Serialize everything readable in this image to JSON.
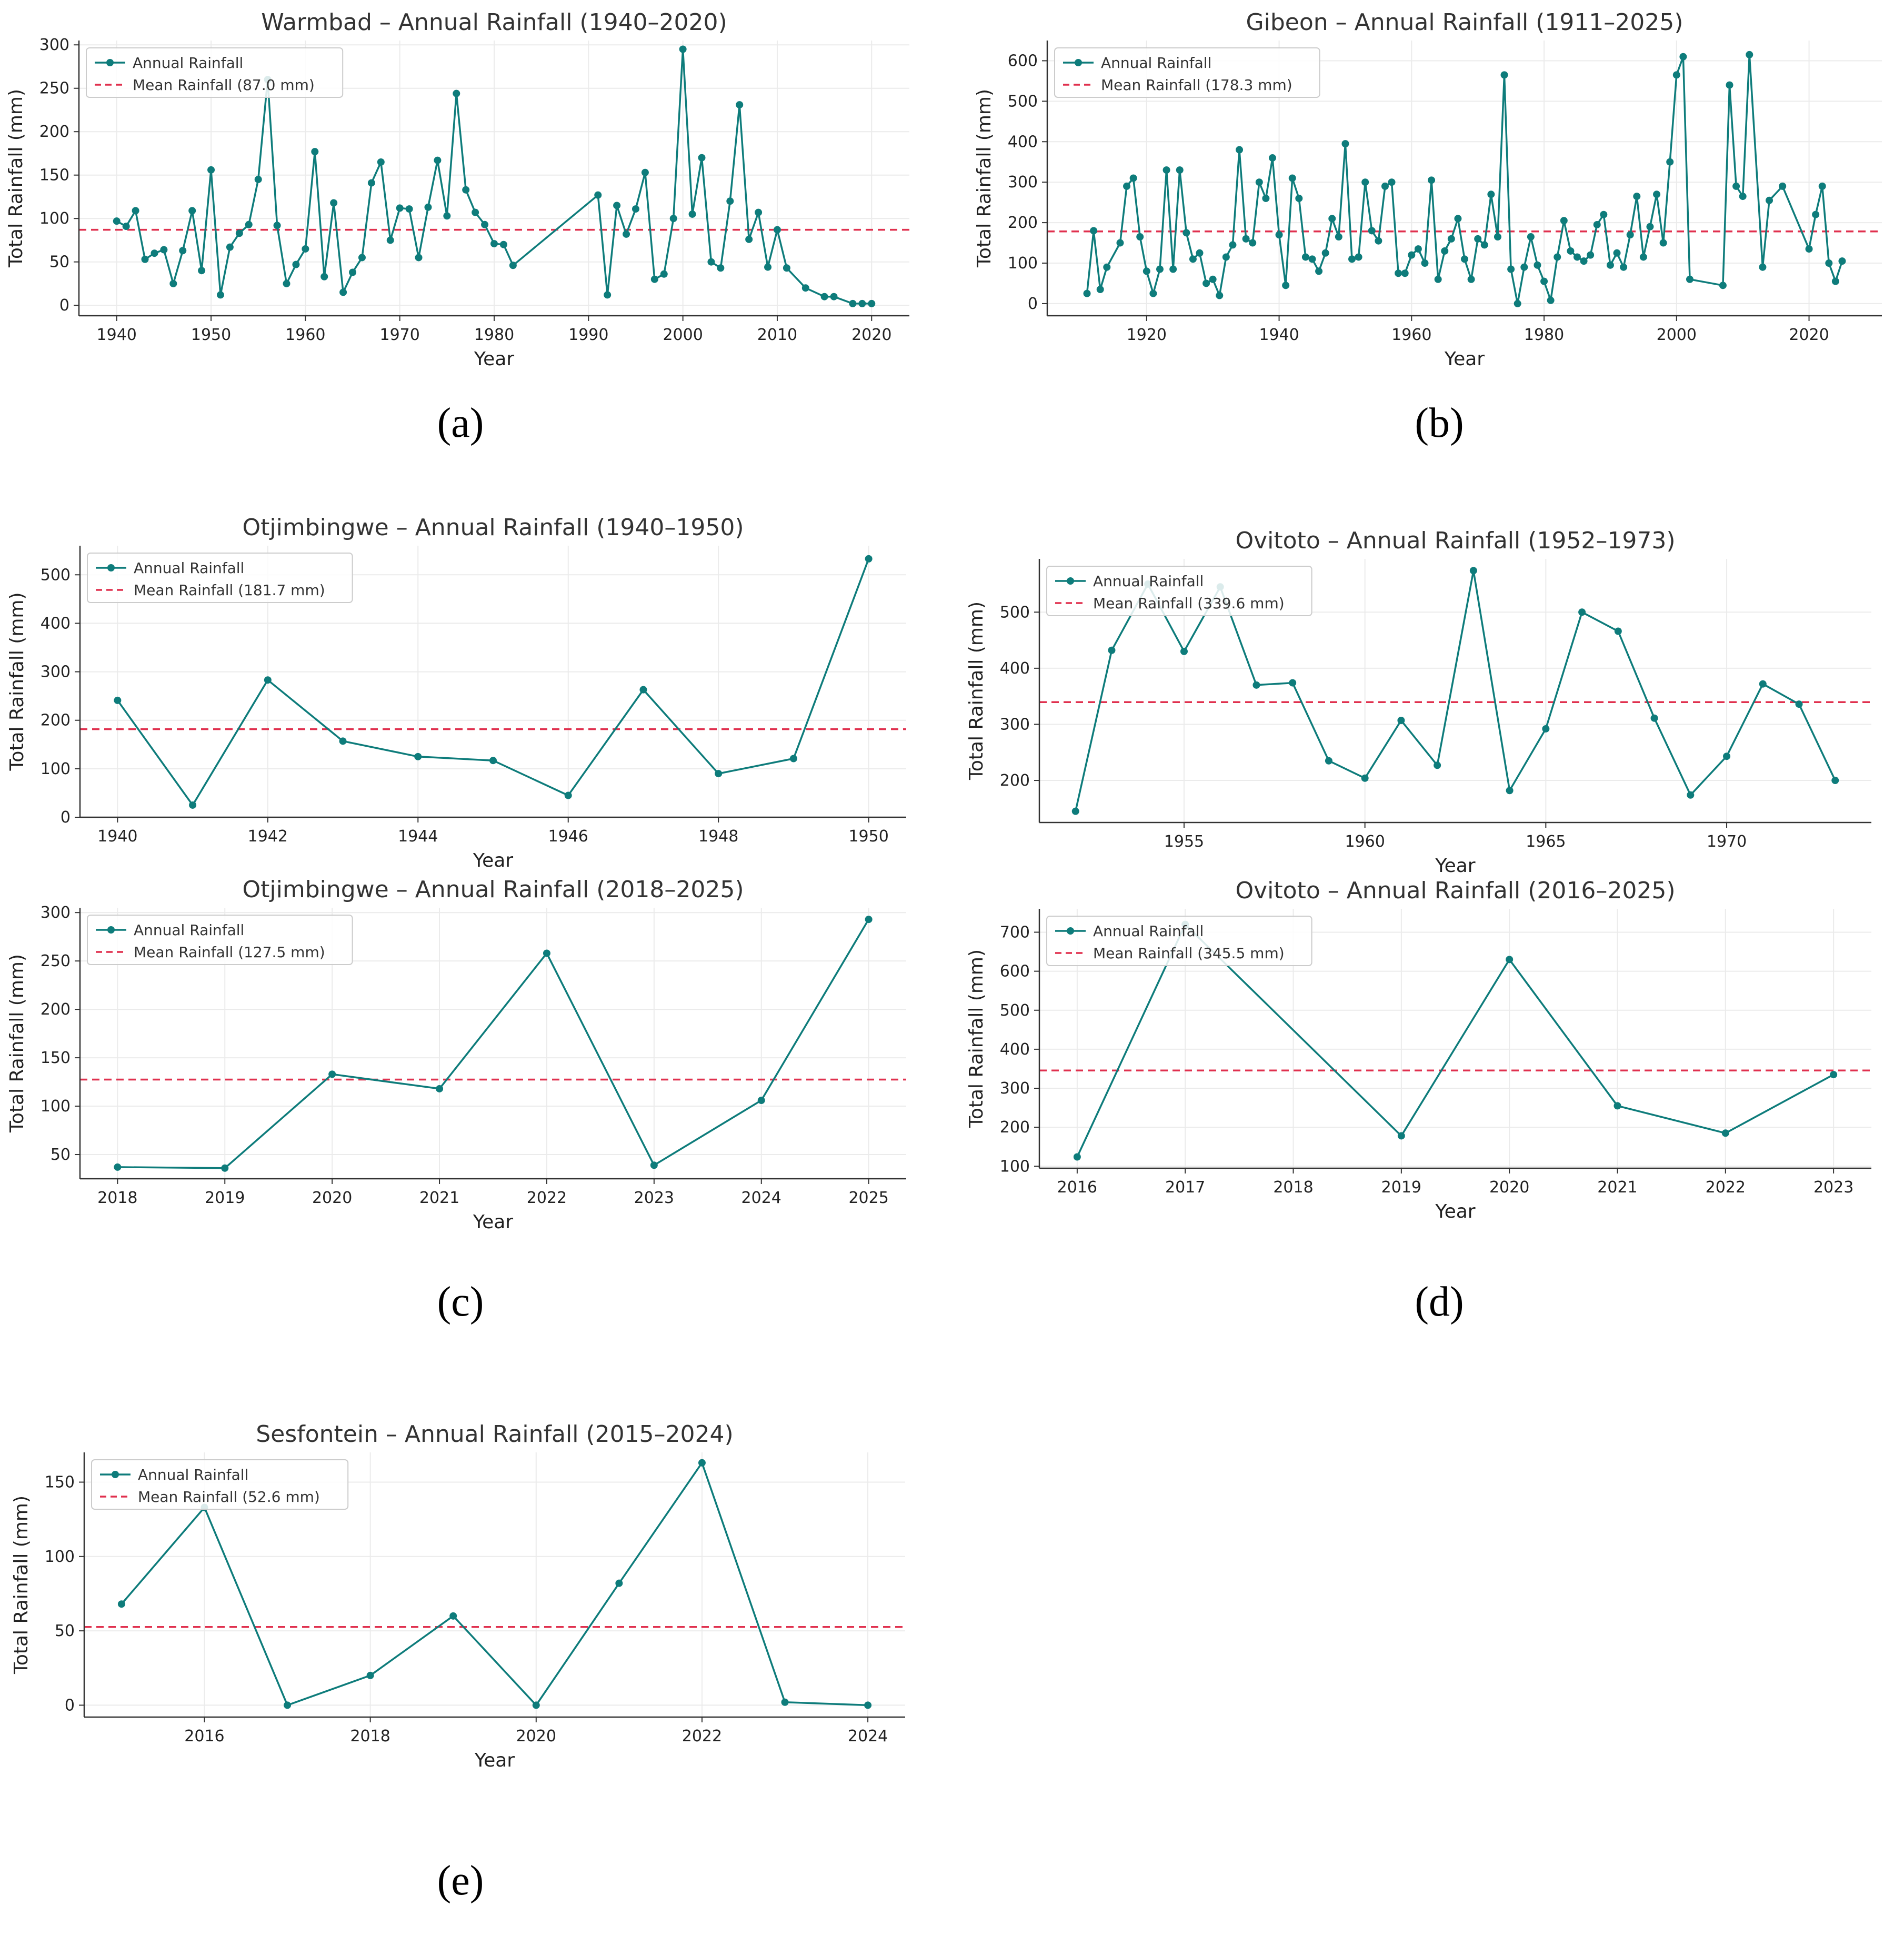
{
  "colors": {
    "series": "#0e7c7b",
    "mean": "#e0304e",
    "axis": "#333333",
    "grid": "#ebebeb",
    "legend_border": "#cccccc"
  },
  "chart_data": [
    {
      "id": "warmbad",
      "type": "line",
      "title": "Warmbad – Annual Rainfall (1940–2020)",
      "xlabel": "Year",
      "ylabel": "Total Rainfall (mm)",
      "xlim": [
        1936,
        2024
      ],
      "ylim": [
        -12,
        305
      ],
      "xticks": [
        1940,
        1950,
        1960,
        1970,
        1980,
        1990,
        2000,
        2010,
        2020
      ],
      "xtick_labels": [
        "1940",
        "1950",
        "1960",
        "1970",
        "1980",
        "1990",
        "2000",
        "2010",
        "2020"
      ],
      "yticks": [
        0,
        50,
        100,
        150,
        200,
        250,
        300
      ],
      "ytick_labels": [
        "0",
        "50",
        "100",
        "150",
        "200",
        "250",
        "300"
      ],
      "legend": {
        "series": "Annual Rainfall",
        "mean": "Mean Rainfall (87.0 mm)",
        "placement": "upper-left"
      },
      "mean": 87.0,
      "panel_label": "(a)",
      "x": [
        1940,
        1941,
        1942,
        1943,
        1944,
        1945,
        1946,
        1947,
        1948,
        1949,
        1950,
        1951,
        1952,
        1953,
        1954,
        1955,
        1956,
        1957,
        1958,
        1959,
        1960,
        1961,
        1962,
        1963,
        1964,
        1965,
        1966,
        1967,
        1968,
        1969,
        1970,
        1971,
        1972,
        1973,
        1974,
        1975,
        1976,
        1977,
        1978,
        1979,
        1980,
        1981,
        1982,
        1991,
        1992,
        1993,
        1994,
        1995,
        1996,
        1997,
        1998,
        1999,
        2000,
        2001,
        2002,
        2003,
        2004,
        2005,
        2006,
        2007,
        2008,
        2009,
        2010,
        2011,
        2013,
        2015,
        2016,
        2018,
        2019,
        2020
      ],
      "values": [
        97,
        91,
        109,
        53,
        60,
        64,
        25,
        63,
        109,
        40,
        156,
        12,
        67,
        83,
        93,
        145,
        260,
        92,
        25,
        47,
        65,
        177,
        33,
        118,
        15,
        38,
        55,
        141,
        165,
        75,
        112,
        111,
        55,
        113,
        167,
        103,
        244,
        133,
        107,
        93,
        71,
        70,
        46,
        127,
        12,
        115,
        82,
        111,
        153,
        30,
        36,
        100,
        295,
        105,
        170,
        50,
        43,
        120,
        231,
        76,
        107,
        44,
        87,
        43,
        20,
        10,
        10,
        2,
        2,
        2
      ]
    },
    {
      "id": "gibeon",
      "type": "line",
      "title": "Gibeon – Annual Rainfall (1911–2025)",
      "xlabel": "Year",
      "ylabel": "Total Rainfall (mm)",
      "xlim": [
        1905,
        2031
      ],
      "ylim": [
        -30,
        650
      ],
      "xticks": [
        1920,
        1940,
        1960,
        1980,
        2000,
        2020
      ],
      "xtick_labels": [
        "1920",
        "1940",
        "1960",
        "1980",
        "2000",
        "2020"
      ],
      "yticks": [
        0,
        100,
        200,
        300,
        400,
        500,
        600
      ],
      "ytick_labels": [
        "0",
        "100",
        "200",
        "300",
        "400",
        "500",
        "600"
      ],
      "legend": {
        "series": "Annual Rainfall",
        "mean": "Mean Rainfall (178.3 mm)",
        "placement": "upper-left"
      },
      "mean": 178.3,
      "panel_label": "(b)",
      "x": [
        1911,
        1912,
        1913,
        1914,
        1916,
        1917,
        1918,
        1919,
        1920,
        1921,
        1922,
        1923,
        1924,
        1925,
        1926,
        1927,
        1928,
        1929,
        1930,
        1931,
        1932,
        1933,
        1934,
        1935,
        1936,
        1937,
        1938,
        1939,
        1940,
        1941,
        1942,
        1943,
        1944,
        1945,
        1946,
        1947,
        1948,
        1949,
        1950,
        1951,
        1952,
        1953,
        1954,
        1955,
        1956,
        1957,
        1958,
        1959,
        1960,
        1961,
        1962,
        1963,
        1964,
        1965,
        1966,
        1967,
        1968,
        1969,
        1970,
        1971,
        1972,
        1973,
        1974,
        1975,
        1976,
        1977,
        1978,
        1979,
        1980,
        1981,
        1982,
        1983,
        1984,
        1985,
        1986,
        1987,
        1988,
        1989,
        1990,
        1991,
        1992,
        1993,
        1994,
        1995,
        1996,
        1997,
        1998,
        1999,
        2000,
        2001,
        2002,
        2007,
        2008,
        2009,
        2010,
        2011,
        2013,
        2014,
        2016,
        2020,
        2021,
        2022,
        2023,
        2024,
        2025
      ],
      "values": [
        25,
        180,
        35,
        90,
        150,
        290,
        310,
        165,
        80,
        25,
        85,
        330,
        85,
        330,
        175,
        110,
        125,
        50,
        60,
        20,
        115,
        145,
        380,
        160,
        150,
        300,
        260,
        360,
        170,
        45,
        310,
        260,
        115,
        110,
        80,
        125,
        210,
        165,
        395,
        110,
        115,
        300,
        180,
        155,
        290,
        300,
        75,
        75,
        120,
        135,
        100,
        305,
        60,
        130,
        160,
        210,
        110,
        60,
        160,
        145,
        270,
        165,
        565,
        85,
        0,
        90,
        165,
        95,
        55,
        8,
        115,
        205,
        130,
        115,
        105,
        120,
        195,
        220,
        95,
        125,
        90,
        170,
        265,
        115,
        190,
        270,
        150,
        350,
        565,
        610,
        60,
        45,
        540,
        290,
        265,
        615,
        90,
        255,
        290,
        135,
        220,
        290,
        100,
        55,
        105
      ]
    },
    {
      "id": "otj1",
      "type": "line",
      "title": "Otjimbingwe – Annual Rainfall (1940–1950)",
      "xlabel": "Year",
      "ylabel": "Total Rainfall (mm)",
      "xlim": [
        1939.5,
        1950.5
      ],
      "ylim": [
        0,
        560
      ],
      "xticks": [
        1940,
        1942,
        1944,
        1946,
        1948,
        1950
      ],
      "xtick_labels": [
        "1940",
        "1942",
        "1944",
        "1946",
        "1948",
        "1950"
      ],
      "yticks": [
        0,
        100,
        200,
        300,
        400,
        500
      ],
      "ytick_labels": [
        "0",
        "100",
        "200",
        "300",
        "400",
        "500"
      ],
      "legend": {
        "series": "Annual Rainfall",
        "mean": "Mean Rainfall (181.7 mm)",
        "placement": "upper-left"
      },
      "mean": 181.7,
      "x": [
        1940,
        1941,
        1942,
        1943,
        1944,
        1945,
        1946,
        1947,
        1948,
        1949,
        1950
      ],
      "values": [
        241,
        25,
        283,
        157,
        125,
        117,
        45,
        263,
        90,
        121,
        533
      ]
    },
    {
      "id": "ovi1",
      "type": "line",
      "title": "Ovitoto – Annual Rainfall (1952–1973)",
      "xlabel": "Year",
      "ylabel": "Total Rainfall (mm)",
      "xlim": [
        1951,
        1974
      ],
      "ylim": [
        125,
        595
      ],
      "xticks": [
        1955,
        1960,
        1965,
        1970
      ],
      "xtick_labels": [
        "1955",
        "1960",
        "1965",
        "1970"
      ],
      "yticks": [
        200,
        300,
        400,
        500
      ],
      "ytick_labels": [
        "200",
        "300",
        "400",
        "500"
      ],
      "legend": {
        "series": "Annual Rainfall",
        "mean": "Mean Rainfall (339.6 mm)",
        "placement": "upper-left"
      },
      "mean": 339.6,
      "x": [
        1952,
        1953,
        1954,
        1955,
        1956,
        1957,
        1958,
        1959,
        1960,
        1961,
        1962,
        1963,
        1964,
        1965,
        1966,
        1967,
        1968,
        1969,
        1970,
        1971,
        1972,
        1973
      ],
      "values": [
        145,
        432,
        550,
        430,
        545,
        370,
        374,
        235,
        204,
        307,
        227,
        574,
        182,
        292,
        500,
        466,
        311,
        174,
        243,
        372,
        336,
        200
      ]
    },
    {
      "id": "otj2",
      "type": "line",
      "title": "Otjimbingwe – Annual Rainfall (2018–2025)",
      "xlabel": "Year",
      "ylabel": "Total Rainfall (mm)",
      "xlim": [
        2017.65,
        2025.35
      ],
      "ylim": [
        25,
        305
      ],
      "xticks": [
        2018,
        2019,
        2020,
        2021,
        2022,
        2023,
        2024,
        2025
      ],
      "xtick_labels": [
        "2018",
        "2019",
        "2020",
        "2021",
        "2022",
        "2023",
        "2024",
        "2025"
      ],
      "yticks": [
        50,
        100,
        150,
        200,
        250,
        300
      ],
      "ytick_labels": [
        "50",
        "100",
        "150",
        "200",
        "250",
        "300"
      ],
      "legend": {
        "series": "Annual Rainfall",
        "mean": "Mean Rainfall (127.5 mm)",
        "placement": "upper-left"
      },
      "mean": 127.5,
      "panel_label": "(c)",
      "x": [
        2018,
        2019,
        2020,
        2021,
        2022,
        2023,
        2024,
        2025
      ],
      "values": [
        37,
        36,
        133,
        118,
        258,
        39,
        106,
        293
      ]
    },
    {
      "id": "ovi2",
      "type": "line",
      "title": "Ovitoto – Annual Rainfall (2016–2025)",
      "xlabel": "Year",
      "ylabel": "Total Rainfall (mm)",
      "xlim": [
        2015.65,
        2023.35
      ],
      "ylim": [
        95,
        760
      ],
      "xticks": [
        2016,
        2017,
        2018,
        2019,
        2020,
        2021,
        2022,
        2023
      ],
      "xtick_labels": [
        "2016",
        "2017",
        "2018",
        "2019",
        "2020",
        "2021",
        "2022",
        "2023"
      ],
      "yticks": [
        100,
        200,
        300,
        400,
        500,
        600,
        700
      ],
      "ytick_labels": [
        "100",
        "200",
        "300",
        "400",
        "500",
        "600",
        "700"
      ],
      "legend": {
        "series": "Annual Rainfall",
        "mean": "Mean Rainfall (345.5 mm)",
        "placement": "upper-left"
      },
      "mean": 345.5,
      "panel_label": "(d)",
      "x": [
        2016,
        2017,
        2019,
        2020,
        2021,
        2022,
        2023
      ],
      "values": [
        124,
        720,
        178,
        630,
        255,
        185,
        335
      ]
    },
    {
      "id": "sesf",
      "type": "line",
      "title": "Sesfontein – Annual Rainfall (2015–2024)",
      "xlabel": "Year",
      "ylabel": "Total Rainfall (mm)",
      "xlim": [
        2014.55,
        2024.45
      ],
      "ylim": [
        -8,
        170
      ],
      "xticks": [
        2016,
        2018,
        2020,
        2022,
        2024
      ],
      "xtick_labels": [
        "2016",
        "2018",
        "2020",
        "2022",
        "2024"
      ],
      "yticks": [
        0,
        50,
        100,
        150
      ],
      "ytick_labels": [
        "0",
        "50",
        "100",
        "150"
      ],
      "legend": {
        "series": "Annual Rainfall",
        "mean": "Mean Rainfall (52.6 mm)",
        "placement": "upper-left"
      },
      "mean": 52.6,
      "panel_label": "(e)",
      "x": [
        2015,
        2016,
        2017,
        2018,
        2019,
        2020,
        2021,
        2022,
        2023,
        2024
      ],
      "values": [
        68,
        133,
        0,
        20,
        60,
        0,
        82,
        163,
        2,
        0
      ]
    }
  ]
}
